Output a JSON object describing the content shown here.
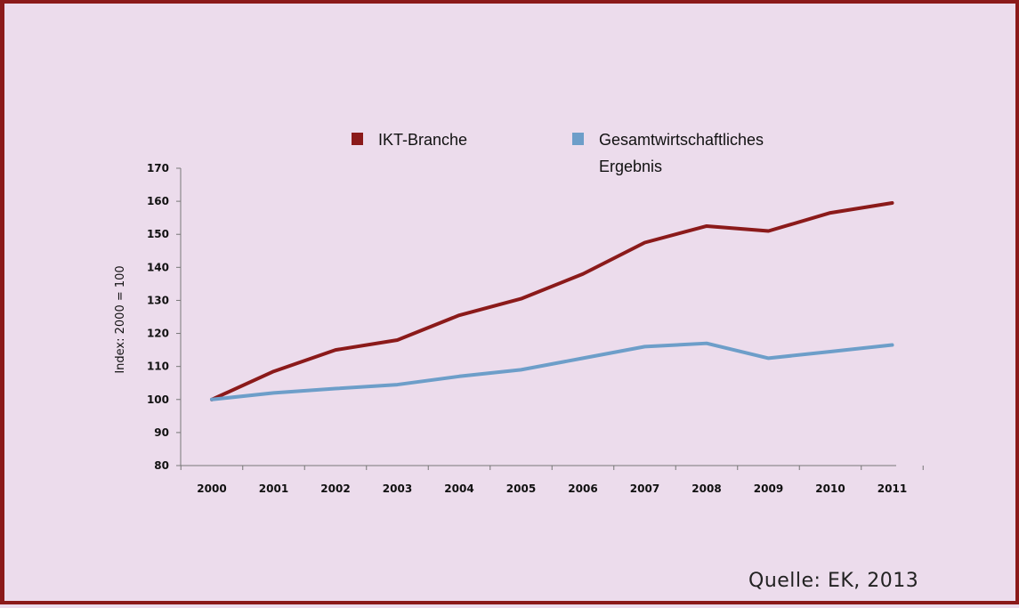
{
  "source_note": "Quelle: EK, 2013",
  "colors": {
    "ikt": "#8b1a1a",
    "gesamt": "#6d9ec9",
    "frame": "#8b1a1a",
    "background": "#ecdcec"
  },
  "chart_data": {
    "type": "line",
    "title": "",
    "xlabel": "",
    "ylabel": "Index: 2000 = 100",
    "x": [
      "2000",
      "2001",
      "2002",
      "2003",
      "2004",
      "2005",
      "2006",
      "2007",
      "2008",
      "2009",
      "2010",
      "2011"
    ],
    "ylim": [
      80,
      170
    ],
    "yticks": [
      80,
      90,
      100,
      110,
      120,
      130,
      140,
      150,
      160,
      170
    ],
    "legend_position": "top",
    "series": [
      {
        "name": "IKT-Branche",
        "color": "#8b1a1a",
        "values": [
          100,
          108.5,
          115,
          118,
          125.5,
          130.5,
          138,
          147.5,
          152.5,
          151,
          156.5,
          159.5
        ]
      },
      {
        "name": "Gesamtwirtschaftliches Ergebnis",
        "name_lines": [
          "Gesamtwirtschaftliches",
          "Ergebnis"
        ],
        "color": "#6d9ec9",
        "values": [
          100,
          102,
          103.3,
          104.5,
          107,
          109,
          112.5,
          116,
          117,
          112.5,
          114.5,
          116.5
        ]
      }
    ]
  }
}
